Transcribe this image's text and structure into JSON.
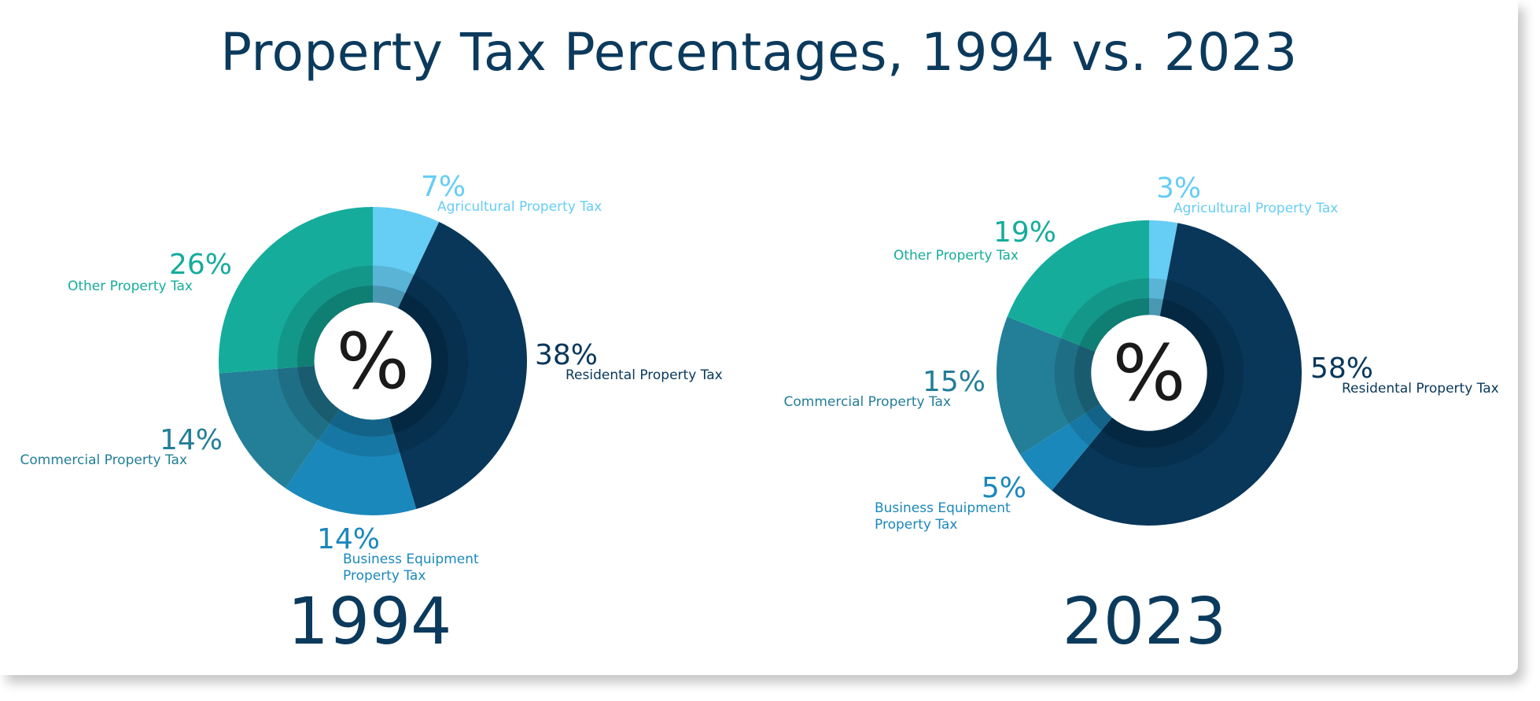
{
  "title": "Property Tax Percentages, 1994 vs. 2023",
  "center_symbol": "%",
  "colors": {
    "residential": "#08375a",
    "business": "#1b88bb",
    "commercial": "#237e98",
    "other": "#16ac9c",
    "agricultural": "#66cdf4",
    "title": "#0b3a5c"
  },
  "chart_data": [
    {
      "type": "pie",
      "title": "1994",
      "slices": [
        {
          "key": "agricultural",
          "label": "Agricultural  Property Tax",
          "label_lines": [
            "Agricultural  Property Tax"
          ],
          "value": 7,
          "value_label": "7%"
        },
        {
          "key": "residential",
          "label": "Residental Property Tax",
          "label_lines": [
            "Residental Property Tax"
          ],
          "value": 38,
          "value_label": "38%"
        },
        {
          "key": "business",
          "label": "Business Equipment Property Tax",
          "label_lines": [
            "Business Equipment",
            "Property Tax"
          ],
          "value": 14,
          "value_label": "14%"
        },
        {
          "key": "commercial",
          "label": "Commercial Property Tax",
          "label_lines": [
            "Commercial Property Tax"
          ],
          "value": 14,
          "value_label": "14%"
        },
        {
          "key": "other",
          "label": "Other Property Tax",
          "label_lines": [
            "Other Property Tax"
          ],
          "value": 26,
          "value_label": "26%"
        }
      ]
    },
    {
      "type": "pie",
      "title": "2023",
      "slices": [
        {
          "key": "agricultural",
          "label": "Agricultural  Property Tax",
          "label_lines": [
            "Agricultural  Property Tax"
          ],
          "value": 3,
          "value_label": "3%"
        },
        {
          "key": "residential",
          "label": "Residental Property Tax",
          "label_lines": [
            "Residental Property Tax"
          ],
          "value": 58,
          "value_label": "58%"
        },
        {
          "key": "business",
          "label": "Business Equipment Property Tax",
          "label_lines": [
            "Business Equipment",
            "Property Tax"
          ],
          "value": 5,
          "value_label": "5%"
        },
        {
          "key": "commercial",
          "label": "Commercial Property Tax",
          "label_lines": [
            "Commercial Property Tax"
          ],
          "value": 15,
          "value_label": "15%"
        },
        {
          "key": "other",
          "label": "Other Property Tax",
          "label_lines": [
            "Other Property Tax"
          ],
          "value": 19,
          "value_label": "19%"
        }
      ]
    }
  ]
}
